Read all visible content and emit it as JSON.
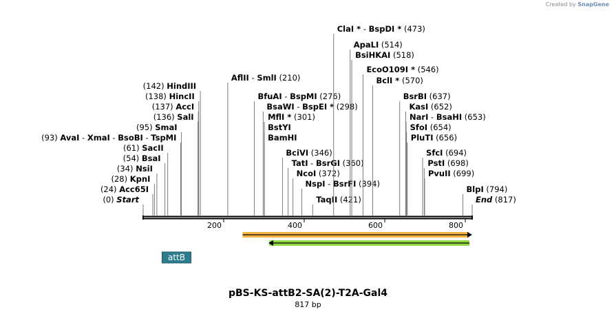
{
  "credit": {
    "prefix": "Created by",
    "brand": "SnapGene"
  },
  "plasmid": {
    "name": "pBS-KS-attB2-SA(2)-T2A-Gal4",
    "length_label": "817 bp",
    "length": 817
  },
  "axis_ticks": [
    200,
    400,
    600,
    800
  ],
  "feature": {
    "label": "attB"
  },
  "colors": {
    "attb_box": "#2e7d8f",
    "orange_arrow": "#f5a623",
    "green_arrow": "#7ed321",
    "line": "#000000",
    "leader": "#7a7a7a"
  },
  "left_labels": [
    {
      "pos": 0,
      "pos_label": "(0)",
      "names": [
        "Start"
      ],
      "star": [
        false
      ],
      "italic": true
    },
    {
      "pos": 24,
      "pos_label": "(24)",
      "names": [
        "Acc65I"
      ],
      "star": [
        false
      ]
    },
    {
      "pos": 28,
      "pos_label": "(28)",
      "names": [
        "KpnI"
      ],
      "star": [
        false
      ]
    },
    {
      "pos": 34,
      "pos_label": "(34)",
      "names": [
        "NsiI"
      ],
      "star": [
        false
      ]
    },
    {
      "pos": 54,
      "pos_label": "(54)",
      "names": [
        "BsaI"
      ],
      "star": [
        false
      ]
    },
    {
      "pos": 61,
      "pos_label": "(61)",
      "names": [
        "SacII"
      ],
      "star": [
        false
      ]
    },
    {
      "pos": 93,
      "pos_label": "(93)",
      "names": [
        "AvaI",
        "XmaI",
        "BsoBI",
        "TspMI"
      ],
      "star": [
        false,
        false,
        false,
        false
      ]
    },
    {
      "pos": 95,
      "pos_label": "(95)",
      "names": [
        "SmaI"
      ],
      "star": [
        false
      ]
    },
    {
      "pos": 136,
      "pos_label": "(136)",
      "names": [
        "SalI"
      ],
      "star": [
        false
      ]
    },
    {
      "pos": 137,
      "pos_label": "(137)",
      "names": [
        "AccI"
      ],
      "star": [
        false
      ]
    },
    {
      "pos": 138,
      "pos_label": "(138)",
      "names": [
        "HincII"
      ],
      "star": [
        false
      ]
    },
    {
      "pos": 142,
      "pos_label": "(142)",
      "names": [
        "HindIII"
      ],
      "star": [
        false
      ]
    }
  ],
  "right_labels": [
    {
      "pos": 210,
      "pos_label": "(210)",
      "names": [
        "AflII",
        "SmlI"
      ],
      "star": [
        false,
        false
      ]
    },
    {
      "pos": 276,
      "pos_label": "(276)",
      "names": [
        "BfuAI",
        "BspMI"
      ],
      "star": [
        false,
        false
      ]
    },
    {
      "pos": 298,
      "pos_label": "(298)",
      "names": [
        "BsaWI",
        "BspEI"
      ],
      "star": [
        false,
        true
      ]
    },
    {
      "pos": 301,
      "pos_label": "(301)",
      "names": [
        "MflI"
      ],
      "star": [
        true
      ]
    },
    {
      "pos": 301,
      "pos_label": "",
      "names": [
        "BstYI"
      ],
      "star": [
        false
      ]
    },
    {
      "pos": 301,
      "pos_label": "",
      "names": [
        "BamHI"
      ],
      "star": [
        false
      ]
    },
    {
      "pos": 346,
      "pos_label": "(346)",
      "names": [
        "BciVI"
      ],
      "star": [
        false
      ]
    },
    {
      "pos": 360,
      "pos_label": "(360)",
      "names": [
        "TatI",
        "BsrGI"
      ],
      "star": [
        false,
        false
      ]
    },
    {
      "pos": 372,
      "pos_label": "(372)",
      "names": [
        "NcoI"
      ],
      "star": [
        false
      ]
    },
    {
      "pos": 394,
      "pos_label": "(394)",
      "names": [
        "NspI",
        "BsrFI"
      ],
      "star": [
        false,
        false
      ]
    },
    {
      "pos": 421,
      "pos_label": "(421)",
      "names": [
        "TaqII"
      ],
      "star": [
        false
      ]
    },
    {
      "pos": 473,
      "pos_label": "(473)",
      "names": [
        "ClaI",
        "BspDI"
      ],
      "star": [
        true,
        true
      ]
    },
    {
      "pos": 514,
      "pos_label": "(514)",
      "names": [
        "ApaLI"
      ],
      "star": [
        false
      ]
    },
    {
      "pos": 518,
      "pos_label": "(518)",
      "names": [
        "BsiHKAI"
      ],
      "star": [
        false
      ]
    },
    {
      "pos": 546,
      "pos_label": "(546)",
      "names": [
        "EcoO109I"
      ],
      "star": [
        true
      ]
    },
    {
      "pos": 570,
      "pos_label": "(570)",
      "names": [
        "BclI"
      ],
      "star": [
        true
      ]
    },
    {
      "pos": 637,
      "pos_label": "(637)",
      "names": [
        "BsrBI"
      ],
      "star": [
        false
      ]
    },
    {
      "pos": 652,
      "pos_label": "(652)",
      "names": [
        "KasI"
      ],
      "star": [
        false
      ]
    },
    {
      "pos": 653,
      "pos_label": "(653)",
      "names": [
        "NarI",
        "BsaHI"
      ],
      "star": [
        false,
        false
      ]
    },
    {
      "pos": 654,
      "pos_label": "(654)",
      "names": [
        "SfoI"
      ],
      "star": [
        false
      ]
    },
    {
      "pos": 656,
      "pos_label": "(656)",
      "names": [
        "PluTI"
      ],
      "star": [
        false
      ]
    },
    {
      "pos": 694,
      "pos_label": "(694)",
      "names": [
        "SfcI"
      ],
      "star": [
        false
      ]
    },
    {
      "pos": 698,
      "pos_label": "(698)",
      "names": [
        "PstI"
      ],
      "star": [
        false
      ]
    },
    {
      "pos": 699,
      "pos_label": "(699)",
      "names": [
        "PvuII"
      ],
      "star": [
        false
      ]
    },
    {
      "pos": 794,
      "pos_label": "(794)",
      "names": [
        "BlpI"
      ],
      "star": [
        false
      ]
    },
    {
      "pos": 817,
      "pos_label": "(817)",
      "names": [
        "End"
      ],
      "star": [
        false
      ],
      "italic": true
    }
  ]
}
